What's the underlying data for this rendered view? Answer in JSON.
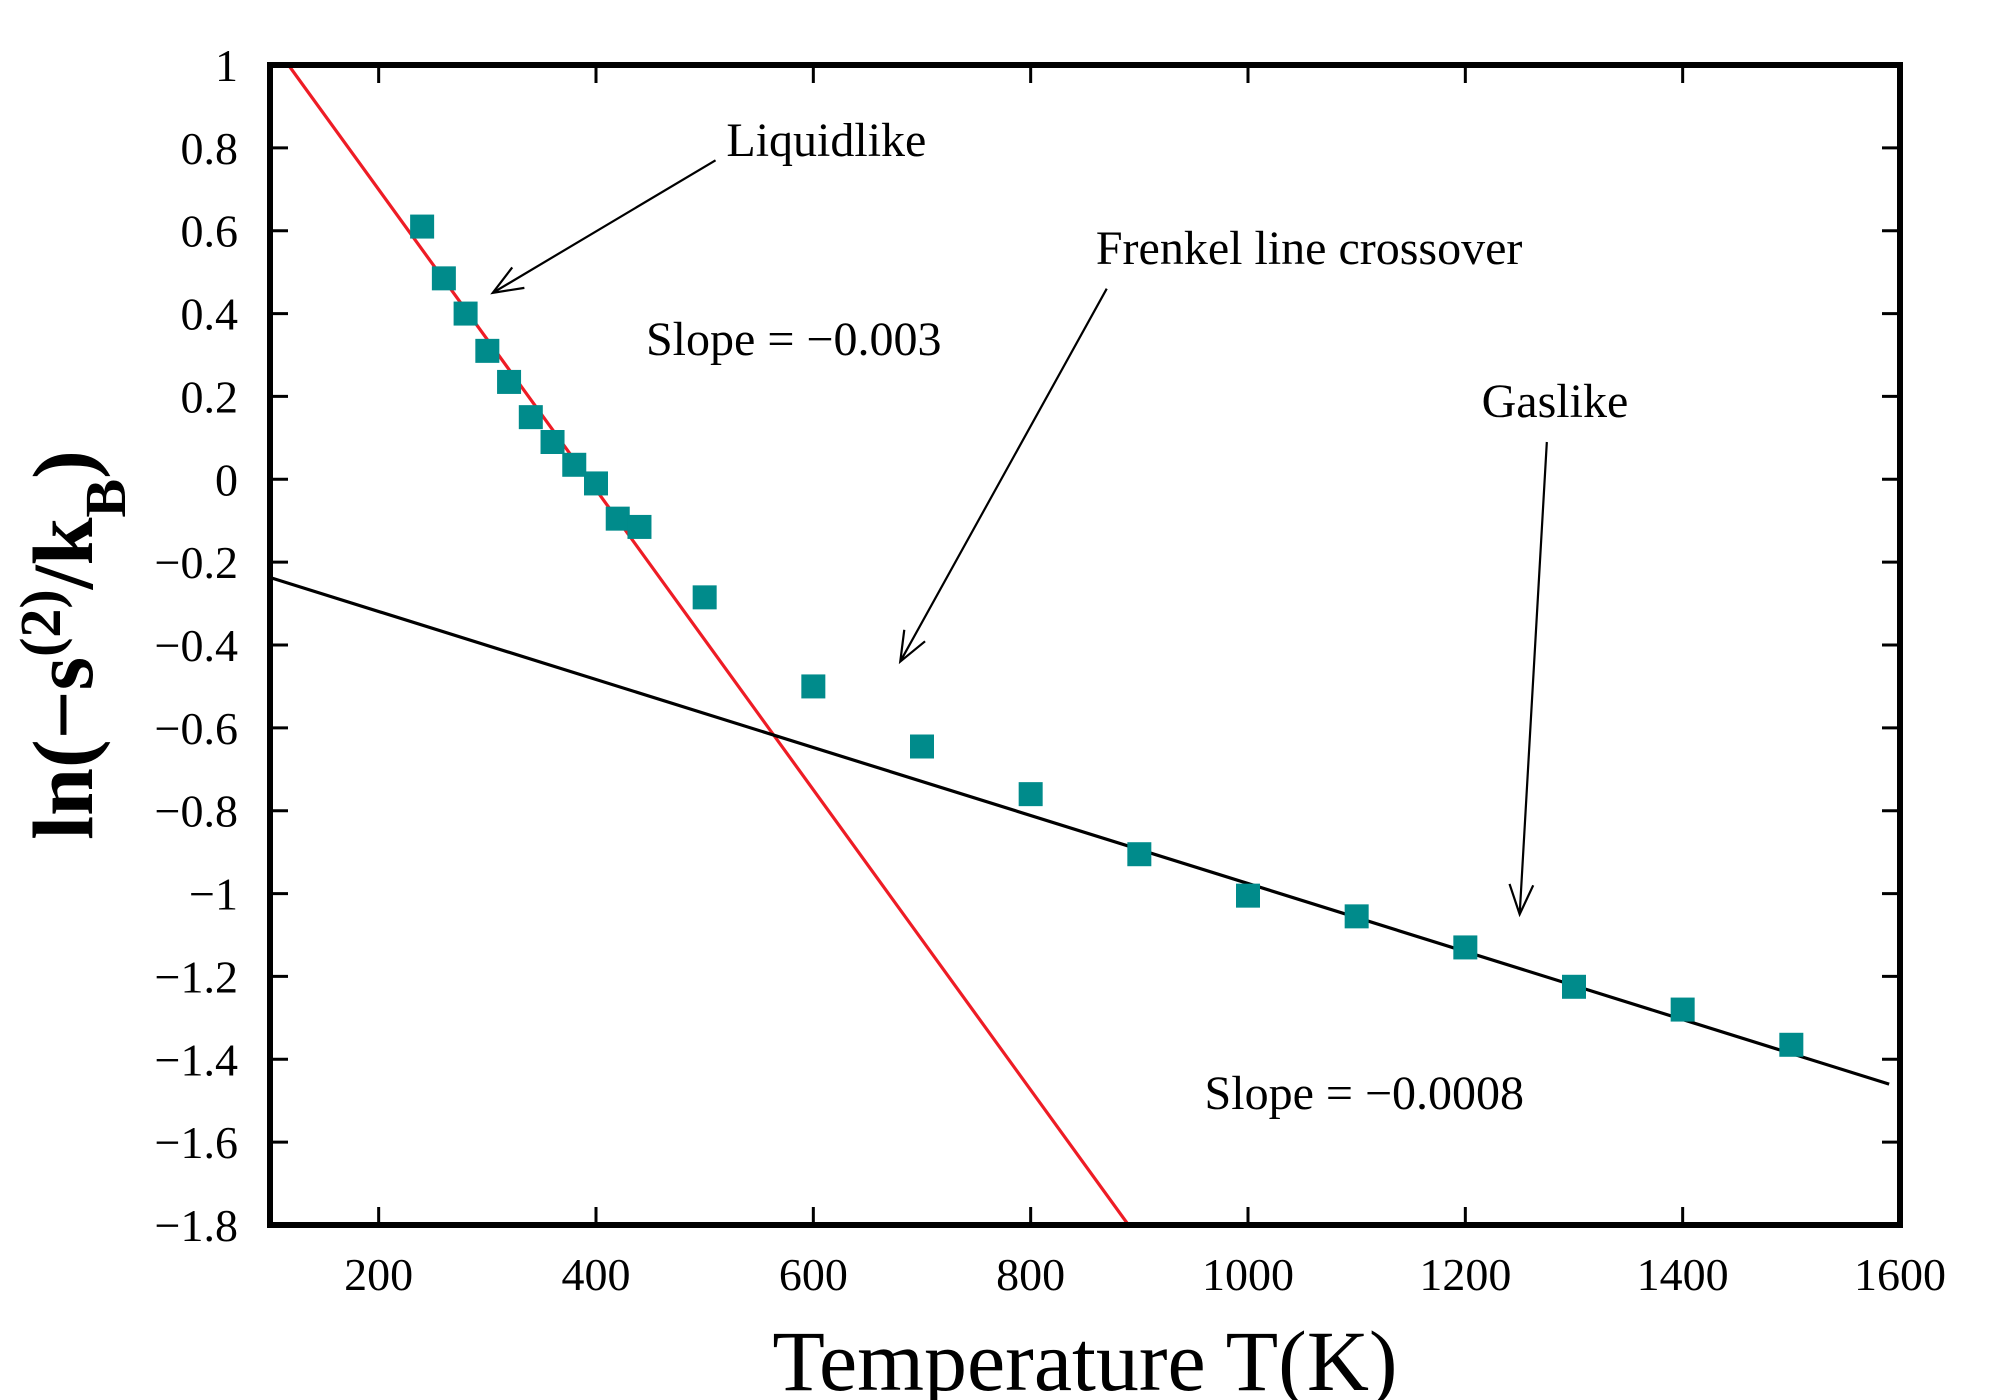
{
  "chart_data": {
    "type": "scatter",
    "xlabel": "Temperature T(K)",
    "ylabel": {
      "prefix": "ln(−s",
      "sup": "(2)",
      "mid": "/k",
      "sub": "B",
      "suffix": ")"
    },
    "xlim": [
      100,
      1600
    ],
    "ylim": [
      -1.8,
      1
    ],
    "xticks": [
      200,
      400,
      600,
      800,
      1000,
      1200,
      1400,
      1600
    ],
    "yticks": [
      1,
      0.8,
      0.6,
      0.4,
      0.2,
      0,
      -0.2,
      -0.4,
      -0.6,
      -0.8,
      -1,
      -1.2,
      -1.4,
      -1.6,
      -1.8
    ],
    "yticklabels": [
      "1",
      "0.8",
      "0.6",
      "0.4",
      "0.2",
      "0",
      "−0.2",
      "−0.4",
      "−0.6",
      "−0.8",
      "−1",
      "−1.2",
      "−1.4",
      "−1.6",
      "−1.8"
    ],
    "series": [
      {
        "name": "data",
        "marker": "square",
        "color": "#008b8b",
        "points": [
          [
            240,
            0.61
          ],
          [
            260,
            0.485
          ],
          [
            280,
            0.4
          ],
          [
            300,
            0.31
          ],
          [
            320,
            0.235
          ],
          [
            340,
            0.15
          ],
          [
            360,
            0.09
          ],
          [
            380,
            0.035
          ],
          [
            400,
            -0.01
          ],
          [
            420,
            -0.095
          ],
          [
            440,
            -0.115
          ],
          [
            500,
            -0.285
          ],
          [
            600,
            -0.5
          ],
          [
            700,
            -0.645
          ],
          [
            800,
            -0.76
          ],
          [
            900,
            -0.905
          ],
          [
            1000,
            -1.005
          ],
          [
            1100,
            -1.055
          ],
          [
            1200,
            -1.13
          ],
          [
            1300,
            -1.225
          ],
          [
            1400,
            -1.28
          ],
          [
            1500,
            -1.365
          ]
        ]
      }
    ],
    "fit_lines": [
      {
        "name": "liquidlike-fit",
        "color": "#ee1c25",
        "x": [
          117,
          890
        ],
        "y": [
          1,
          -1.8
        ]
      },
      {
        "name": "gaslike-fit",
        "color": "#000000",
        "x": [
          100,
          1590
        ],
        "y": [
          -0.237,
          -1.46
        ]
      }
    ],
    "annotations": [
      {
        "name": "liquidlike",
        "text": "Liquidlike",
        "text_x": 520,
        "text_y": 0.78,
        "arrow_from": [
          510,
          0.77
        ],
        "arrow_to": [
          305,
          0.45
        ]
      },
      {
        "name": "frenkel",
        "text": "Frenkel line crossover",
        "text_x": 860,
        "text_y": 0.52,
        "arrow_from": [
          870,
          0.46
        ],
        "arrow_to": [
          680,
          -0.44
        ]
      },
      {
        "name": "gaslike",
        "text": "Gaslike",
        "text_x": 1215,
        "text_y": 0.15,
        "arrow_from": [
          1275,
          0.09
        ],
        "arrow_to": [
          1250,
          -1.05
        ]
      },
      {
        "name": "slope-liquid",
        "text": "Slope = −0.003",
        "text_x": 446,
        "text_y": 0.3
      },
      {
        "name": "slope-gas",
        "text": "Slope = −0.0008",
        "text_x": 960,
        "text_y": -1.52
      }
    ]
  }
}
